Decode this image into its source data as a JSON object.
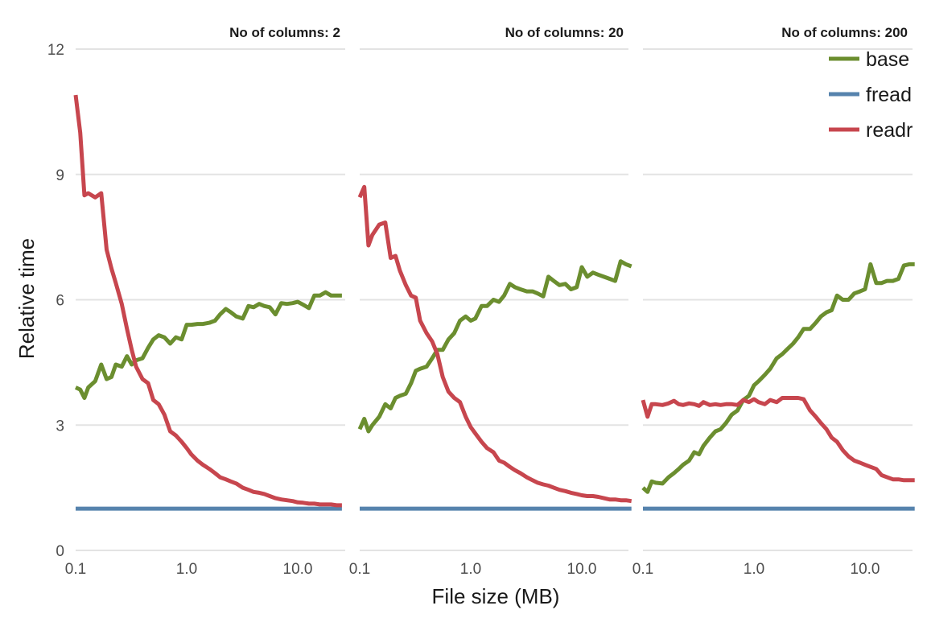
{
  "chart_data": {
    "type": "line",
    "xlabel": "File size (MB)",
    "ylabel": "Relative time",
    "ylim": [
      0,
      12
    ],
    "yticks": [
      0,
      3,
      6,
      9,
      12
    ],
    "xscale": "log",
    "xticks": [
      {
        "value": 0.1,
        "label": "0.1"
      },
      {
        "value": 1,
        "label": "1.0"
      },
      {
        "value": 10,
        "label": "10.0"
      }
    ],
    "grid": "horizontal only",
    "legend_position": "top-right",
    "legend": [
      {
        "name": "base",
        "color": "#6b8e2f"
      },
      {
        "name": "fread",
        "color": "#5683ad"
      },
      {
        "name": "readr",
        "color": "#c7464e"
      }
    ],
    "facets": [
      {
        "title": "No of columns: 2",
        "xlim": [
          0.1,
          25
        ],
        "series": [
          {
            "name": "base",
            "x": [
              0.1,
              0.11,
              0.12,
              0.13,
              0.15,
              0.17,
              0.19,
              0.21,
              0.23,
              0.26,
              0.29,
              0.32,
              0.35,
              0.4,
              0.45,
              0.5,
              0.56,
              0.63,
              0.71,
              0.8,
              0.9,
              1.0,
              1.1,
              1.25,
              1.4,
              1.6,
              1.8,
              2.0,
              2.25,
              2.5,
              2.8,
              3.2,
              3.6,
              4.0,
              4.5,
              5.0,
              5.6,
              6.3,
              7.1,
              8.0,
              9.0,
              10.0,
              11.2,
              12.6,
              14.1,
              15.8,
              17.8,
              20,
              22.4,
              25
            ],
            "values": [
              3.9,
              3.85,
              3.65,
              3.9,
              4.05,
              4.45,
              4.1,
              4.15,
              4.45,
              4.4,
              4.65,
              4.45,
              4.55,
              4.6,
              4.85,
              5.05,
              5.15,
              5.1,
              4.95,
              5.1,
              5.05,
              5.4,
              5.4,
              5.42,
              5.42,
              5.45,
              5.5,
              5.65,
              5.78,
              5.7,
              5.6,
              5.55,
              5.85,
              5.82,
              5.9,
              5.85,
              5.82,
              5.65,
              5.92,
              5.9,
              5.92,
              5.95,
              5.88,
              5.8,
              6.1,
              6.1,
              6.18,
              6.1,
              6.1,
              6.1
            ]
          },
          {
            "name": "fread",
            "x": [
              0.1,
              25
            ],
            "values": [
              1.0,
              1.0
            ]
          },
          {
            "name": "readr",
            "x": [
              0.1,
              0.11,
              0.12,
              0.13,
              0.15,
              0.17,
              0.19,
              0.21,
              0.23,
              0.26,
              0.29,
              0.32,
              0.35,
              0.4,
              0.45,
              0.5,
              0.56,
              0.63,
              0.71,
              0.8,
              0.9,
              1.0,
              1.1,
              1.25,
              1.4,
              1.6,
              1.8,
              2.0,
              2.25,
              2.5,
              2.8,
              3.2,
              3.6,
              4.0,
              4.5,
              5.0,
              5.6,
              6.3,
              7.1,
              8.0,
              9.0,
              10.0,
              11.2,
              12.6,
              14.1,
              15.8,
              17.8,
              20,
              22.4,
              25
            ],
            "values": [
              10.9,
              10.0,
              8.5,
              8.55,
              8.45,
              8.55,
              7.2,
              6.75,
              6.4,
              5.9,
              5.3,
              4.8,
              4.4,
              4.1,
              4.0,
              3.6,
              3.5,
              3.25,
              2.85,
              2.75,
              2.6,
              2.45,
              2.3,
              2.15,
              2.05,
              1.95,
              1.85,
              1.75,
              1.7,
              1.65,
              1.6,
              1.5,
              1.45,
              1.4,
              1.38,
              1.35,
              1.3,
              1.25,
              1.22,
              1.2,
              1.18,
              1.15,
              1.14,
              1.12,
              1.12,
              1.1,
              1.1,
              1.1,
              1.08,
              1.08
            ]
          }
        ]
      },
      {
        "title": "No of columns: 20",
        "xlim": [
          0.1,
          28
        ],
        "series": [
          {
            "name": "base",
            "x": [
              0.1,
              0.11,
              0.12,
              0.13,
              0.15,
              0.17,
              0.19,
              0.21,
              0.23,
              0.26,
              0.29,
              0.32,
              0.35,
              0.4,
              0.45,
              0.5,
              0.56,
              0.63,
              0.71,
              0.8,
              0.9,
              1.0,
              1.1,
              1.25,
              1.4,
              1.6,
              1.8,
              2.0,
              2.25,
              2.5,
              2.8,
              3.2,
              3.6,
              4.0,
              4.5,
              5.0,
              5.6,
              6.3,
              7.1,
              8.0,
              9.0,
              10.0,
              11.2,
              12.6,
              14.1,
              15.8,
              17.8,
              20,
              22.4,
              25,
              28
            ],
            "values": [
              2.9,
              3.15,
              2.85,
              3.0,
              3.2,
              3.5,
              3.4,
              3.65,
              3.7,
              3.75,
              4.0,
              4.3,
              4.35,
              4.4,
              4.6,
              4.8,
              4.8,
              5.05,
              5.2,
              5.5,
              5.6,
              5.5,
              5.55,
              5.85,
              5.85,
              6.0,
              5.95,
              6.1,
              6.38,
              6.3,
              6.25,
              6.2,
              6.2,
              6.15,
              6.08,
              6.55,
              6.45,
              6.35,
              6.38,
              6.25,
              6.3,
              6.78,
              6.55,
              6.65,
              6.6,
              6.55,
              6.5,
              6.45,
              6.92,
              6.85,
              6.8
            ]
          },
          {
            "name": "fread",
            "x": [
              0.1,
              28
            ],
            "values": [
              1.0,
              1.0
            ]
          },
          {
            "name": "readr",
            "x": [
              0.1,
              0.11,
              0.12,
              0.13,
              0.15,
              0.17,
              0.19,
              0.21,
              0.23,
              0.26,
              0.29,
              0.32,
              0.35,
              0.4,
              0.45,
              0.5,
              0.56,
              0.63,
              0.71,
              0.8,
              0.9,
              1.0,
              1.1,
              1.25,
              1.4,
              1.6,
              1.8,
              2.0,
              2.25,
              2.5,
              2.8,
              3.2,
              3.6,
              4.0,
              4.5,
              5.0,
              5.6,
              6.3,
              7.1,
              8.0,
              9.0,
              10.0,
              11.2,
              12.6,
              14.1,
              15.8,
              17.8,
              20,
              22.4,
              25,
              28
            ],
            "values": [
              8.45,
              8.7,
              7.3,
              7.55,
              7.8,
              7.85,
              7.0,
              7.05,
              6.7,
              6.35,
              6.1,
              6.05,
              5.5,
              5.2,
              5.0,
              4.7,
              4.15,
              3.8,
              3.65,
              3.55,
              3.2,
              2.95,
              2.8,
              2.6,
              2.45,
              2.35,
              2.15,
              2.1,
              2.0,
              1.92,
              1.85,
              1.75,
              1.68,
              1.62,
              1.58,
              1.55,
              1.5,
              1.45,
              1.42,
              1.38,
              1.35,
              1.32,
              1.3,
              1.3,
              1.28,
              1.25,
              1.22,
              1.22,
              1.2,
              1.2,
              1.18
            ]
          }
        ]
      },
      {
        "title": "No of columns: 200",
        "xlim": [
          0.1,
          28
        ],
        "series": [
          {
            "name": "base",
            "x": [
              0.1,
              0.11,
              0.12,
              0.13,
              0.15,
              0.17,
              0.19,
              0.21,
              0.23,
              0.26,
              0.29,
              0.32,
              0.35,
              0.4,
              0.45,
              0.5,
              0.56,
              0.63,
              0.71,
              0.8,
              0.9,
              1.0,
              1.1,
              1.25,
              1.4,
              1.6,
              1.8,
              2.0,
              2.25,
              2.5,
              2.8,
              3.2,
              3.6,
              4.0,
              4.5,
              5.0,
              5.6,
              6.3,
              7.1,
              8.0,
              9.0,
              10.0,
              11.2,
              12.6,
              14.1,
              15.8,
              17.8,
              20,
              22.4,
              25,
              28
            ],
            "values": [
              1.5,
              1.4,
              1.65,
              1.62,
              1.6,
              1.75,
              1.85,
              1.95,
              2.05,
              2.15,
              2.35,
              2.3,
              2.5,
              2.7,
              2.85,
              2.9,
              3.05,
              3.25,
              3.35,
              3.6,
              3.7,
              3.95,
              4.05,
              4.2,
              4.35,
              4.6,
              4.7,
              4.82,
              4.95,
              5.1,
              5.3,
              5.3,
              5.45,
              5.6,
              5.7,
              5.75,
              6.1,
              6.0,
              6.0,
              6.15,
              6.2,
              6.25,
              6.85,
              6.4,
              6.4,
              6.45,
              6.45,
              6.5,
              6.82,
              6.85,
              6.85
            ]
          },
          {
            "name": "fread",
            "x": [
              0.1,
              28
            ],
            "values": [
              1.0,
              1.0
            ]
          },
          {
            "name": "readr",
            "x": [
              0.1,
              0.11,
              0.12,
              0.13,
              0.15,
              0.17,
              0.19,
              0.21,
              0.23,
              0.26,
              0.29,
              0.32,
              0.35,
              0.4,
              0.45,
              0.5,
              0.56,
              0.63,
              0.71,
              0.8,
              0.9,
              1.0,
              1.1,
              1.25,
              1.4,
              1.6,
              1.8,
              2.0,
              2.25,
              2.5,
              2.8,
              3.2,
              3.6,
              4.0,
              4.5,
              5.0,
              5.6,
              6.3,
              7.1,
              8.0,
              9.0,
              10.0,
              11.2,
              12.6,
              14.1,
              15.8,
              17.8,
              20,
              22.4,
              25,
              28
            ],
            "values": [
              3.6,
              3.2,
              3.5,
              3.5,
              3.48,
              3.52,
              3.58,
              3.5,
              3.48,
              3.52,
              3.5,
              3.46,
              3.55,
              3.48,
              3.5,
              3.48,
              3.5,
              3.5,
              3.48,
              3.6,
              3.55,
              3.62,
              3.55,
              3.5,
              3.6,
              3.55,
              3.65,
              3.65,
              3.65,
              3.65,
              3.62,
              3.35,
              3.2,
              3.05,
              2.9,
              2.7,
              2.6,
              2.4,
              2.25,
              2.15,
              2.1,
              2.05,
              2.0,
              1.95,
              1.8,
              1.75,
              1.7,
              1.7,
              1.68,
              1.68,
              1.68
            ]
          }
        ]
      }
    ]
  }
}
